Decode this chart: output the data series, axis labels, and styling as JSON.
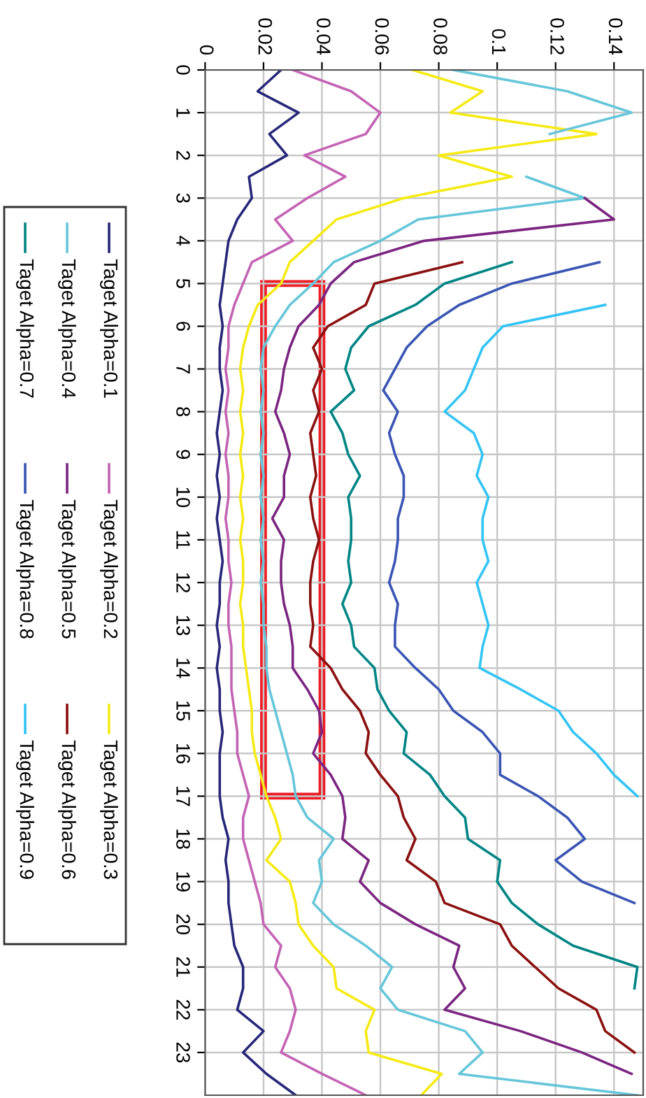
{
  "chart_data": {
    "type": "line",
    "x": [
      0,
      0.5,
      1,
      1.5,
      2,
      2.5,
      3,
      3.5,
      4,
      4.5,
      5,
      5.5,
      6,
      6.5,
      7,
      7.5,
      8,
      8.5,
      9,
      9.5,
      10,
      10.5,
      11,
      11.5,
      12,
      12.5,
      13,
      13.5,
      14,
      14.5,
      15,
      15.5,
      16,
      16.5,
      17,
      17.5,
      18,
      18.5,
      19,
      19.5,
      20,
      20.5,
      21,
      21.5,
      22,
      22.5,
      23,
      23.5,
      24
    ],
    "orientation": "horizontal",
    "ylim": [
      24,
      0
    ],
    "yticks": [
      0,
      1,
      2,
      3,
      4,
      5,
      6,
      7,
      8,
      9,
      10,
      11,
      12,
      13,
      14,
      15,
      16,
      17,
      18,
      19,
      20,
      21,
      22,
      23
    ],
    "xlim": [
      0,
      0.15
    ],
    "xticks": [
      0,
      0.02,
      0.04,
      0.06,
      0.08,
      0.1,
      0.12,
      0.14
    ],
    "grid": true,
    "legend": "left",
    "marker": "none",
    "line_style": "solid",
    "series": [
      {
        "name": "Taget Alpha=0.1",
        "color": "#27277a",
        "values": [
          0.026,
          0.018,
          0.032,
          0.022,
          0.028,
          0.015,
          0.016,
          0.011,
          0.008,
          0.007,
          0.006,
          0.005,
          0.006,
          0.005,
          0.005,
          0.006,
          0.005,
          0.004,
          0.005,
          0.004,
          0.005,
          0.004,
          0.005,
          0.006,
          0.005,
          0.005,
          0.004,
          0.005,
          0.004,
          0.005,
          0.005,
          0.006,
          0.005,
          0.005,
          0.005,
          0.006,
          0.008,
          0.007,
          0.008,
          0.008,
          0.009,
          0.01,
          0.013,
          0.013,
          0.011,
          0.02,
          0.013,
          0.021,
          0.031
        ]
      },
      {
        "name": "Taget Alpha=0.2",
        "color": "#c463b4",
        "values": [
          0.03,
          0.05,
          0.06,
          0.055,
          0.034,
          0.048,
          0.035,
          0.024,
          0.03,
          0.016,
          0.013,
          0.01,
          0.008,
          0.008,
          0.007,
          0.008,
          0.007,
          0.008,
          0.007,
          0.008,
          0.008,
          0.007,
          0.008,
          0.008,
          0.009,
          0.008,
          0.008,
          0.009,
          0.009,
          0.009,
          0.01,
          0.011,
          0.011,
          0.013,
          0.015,
          0.013,
          0.013,
          0.015,
          0.017,
          0.019,
          0.02,
          0.026,
          0.024,
          0.029,
          0.031,
          0.029,
          0.026,
          0.04,
          0.055
        ]
      },
      {
        "name": "Taget Alpha=0.3",
        "color": "#f5ea14",
        "values": [
          0.071,
          0.095,
          0.084,
          0.134,
          0.08,
          0.105,
          0.068,
          0.045,
          0.037,
          0.029,
          0.026,
          0.018,
          0.015,
          0.013,
          0.012,
          0.013,
          0.012,
          0.013,
          0.012,
          0.013,
          0.012,
          0.013,
          0.012,
          0.013,
          0.013,
          0.012,
          0.013,
          0.013,
          0.014,
          0.015,
          0.016,
          0.016,
          0.017,
          0.019,
          0.021,
          0.024,
          0.026,
          0.021,
          0.029,
          0.031,
          0.032,
          0.037,
          0.044,
          0.045,
          0.058,
          0.055,
          0.056,
          0.081,
          0.074
        ]
      },
      {
        "name": "Taget Alpha=0.4",
        "color": "#66c6d9",
        "values": [
          0.085,
          0.124,
          0.146,
          0.118,
          null,
          0.11,
          0.13,
          0.073,
          0.06,
          0.044,
          0.037,
          0.029,
          0.024,
          0.02,
          0.019,
          0.02,
          0.019,
          0.02,
          0.019,
          0.02,
          0.019,
          0.02,
          0.019,
          0.02,
          0.019,
          0.02,
          0.02,
          0.021,
          0.021,
          0.022,
          0.024,
          0.026,
          0.028,
          0.03,
          0.031,
          0.035,
          0.044,
          0.039,
          0.04,
          0.037,
          0.044,
          0.055,
          0.064,
          0.06,
          0.066,
          0.089,
          0.095,
          0.087,
          0.148
        ]
      },
      {
        "name": "Taget Alpha=0.5",
        "color": "#7b2581",
        "values": [
          null,
          null,
          null,
          null,
          null,
          null,
          0.13,
          0.14,
          0.075,
          0.051,
          0.043,
          0.039,
          0.032,
          0.029,
          0.027,
          0.026,
          0.024,
          0.027,
          0.029,
          0.027,
          0.027,
          0.023,
          0.027,
          0.026,
          0.026,
          0.027,
          0.029,
          0.03,
          0.03,
          0.035,
          0.039,
          0.04,
          0.037,
          0.043,
          0.047,
          0.048,
          0.047,
          0.056,
          0.053,
          0.06,
          0.072,
          0.087,
          0.085,
          0.089,
          0.082,
          0.108,
          0.129,
          0.146,
          null
        ]
      },
      {
        "name": "Taget Alpha=0.6",
        "color": "#8b1010",
        "values": [
          null,
          null,
          null,
          null,
          null,
          null,
          null,
          null,
          null,
          0.088,
          0.058,
          0.055,
          0.042,
          0.037,
          0.04,
          0.037,
          0.039,
          0.036,
          0.037,
          0.038,
          0.036,
          0.037,
          0.039,
          0.037,
          0.036,
          0.036,
          0.037,
          0.036,
          0.043,
          0.047,
          0.053,
          0.056,
          0.055,
          0.06,
          0.066,
          0.068,
          0.072,
          0.069,
          0.079,
          0.082,
          0.101,
          0.105,
          0.113,
          0.121,
          0.134,
          0.137,
          0.147,
          null,
          null
        ]
      },
      {
        "name": "Taget Alpha=0.7",
        "color": "#008585",
        "values": [
          null,
          null,
          null,
          null,
          null,
          null,
          null,
          null,
          null,
          0.105,
          0.082,
          0.072,
          0.056,
          0.05,
          0.048,
          0.051,
          0.043,
          0.047,
          0.049,
          0.053,
          0.049,
          0.05,
          0.05,
          0.049,
          0.05,
          0.047,
          0.05,
          0.051,
          0.058,
          0.059,
          0.063,
          0.069,
          0.068,
          0.077,
          0.082,
          0.089,
          0.09,
          0.101,
          0.1,
          0.105,
          0.114,
          0.126,
          0.148,
          0.147,
          null,
          null,
          null,
          null,
          null
        ]
      },
      {
        "name": "Taget Alpha=0.8",
        "color": "#3a55b4",
        "values": [
          null,
          null,
          null,
          null,
          null,
          null,
          null,
          null,
          null,
          0.135,
          0.105,
          0.087,
          0.076,
          0.069,
          0.065,
          0.061,
          0.066,
          0.063,
          0.065,
          0.068,
          0.068,
          0.066,
          0.066,
          0.065,
          0.063,
          0.066,
          0.065,
          0.065,
          0.072,
          0.08,
          0.085,
          0.095,
          0.101,
          0.101,
          0.114,
          0.124,
          0.13,
          0.12,
          0.129,
          0.147,
          null,
          null,
          null,
          null,
          null,
          null,
          null,
          null,
          null
        ]
      },
      {
        "name": "Taget Alpha=0.9",
        "color": "#33c4f5",
        "values": [
          null,
          null,
          null,
          null,
          null,
          null,
          null,
          null,
          null,
          null,
          null,
          0.137,
          0.102,
          0.095,
          0.092,
          0.089,
          0.082,
          0.092,
          0.095,
          0.093,
          0.097,
          0.095,
          0.095,
          0.097,
          0.093,
          0.095,
          0.097,
          0.095,
          0.094,
          0.108,
          0.121,
          0.126,
          0.134,
          0.14,
          0.148,
          null,
          null,
          null,
          null,
          null,
          null,
          null,
          null,
          null,
          null,
          null,
          null,
          null,
          null
        ]
      }
    ]
  }
}
